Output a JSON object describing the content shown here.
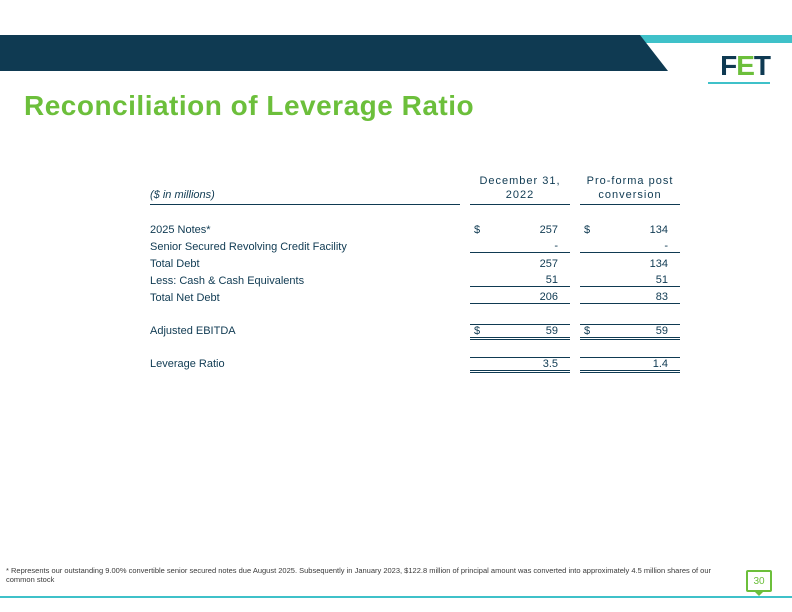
{
  "logo": {
    "text_f": "F",
    "text_e": "E",
    "text_t": "T"
  },
  "title": "Reconciliation of Leverage Ratio",
  "table": {
    "unit_label": "($ in millions)",
    "col1": {
      "line1": "December 31,",
      "line2": "2022"
    },
    "col2": {
      "line1": "Pro-forma post",
      "line2": "conversion"
    },
    "rows": {
      "notes": {
        "label": "2025 Notes*",
        "c1_cur": "$",
        "c1": "257",
        "c2_cur": "$",
        "c2": "134"
      },
      "revolver": {
        "label": "Senior Secured Revolving Credit Facility",
        "c1_cur": "",
        "c1": "-",
        "c2_cur": "",
        "c2": "-"
      },
      "total_debt": {
        "label": "Total Debt",
        "c1_cur": "",
        "c1": "257",
        "c2_cur": "",
        "c2": "134"
      },
      "less_cash": {
        "label": "Less: Cash & Cash Equivalents",
        "c1_cur": "",
        "c1": "51",
        "c2_cur": "",
        "c2": "51"
      },
      "net_debt": {
        "label": "Total Net Debt",
        "c1_cur": "",
        "c1": "206",
        "c2_cur": "",
        "c2": "83"
      },
      "ebitda": {
        "label": "Adjusted EBITDA",
        "c1_cur": "$",
        "c1": "59",
        "c2_cur": "$",
        "c2": "59"
      },
      "leverage": {
        "label": "Leverage Ratio",
        "c1_cur": "",
        "c1": "3.5",
        "c2_cur": "",
        "c2": "1.4"
      }
    }
  },
  "footnote": "*  Represents our outstanding 9.00% convertible senior secured notes due August 2025. Subsequently in January 2023, $122.8 million of principal amount was converted into approximately 4.5 million shares of our common stock",
  "page_number": "30",
  "colors": {
    "navy": "#0f3a52",
    "green": "#6cbf3b",
    "teal": "#3fc1c9",
    "bg": "#ffffff"
  }
}
